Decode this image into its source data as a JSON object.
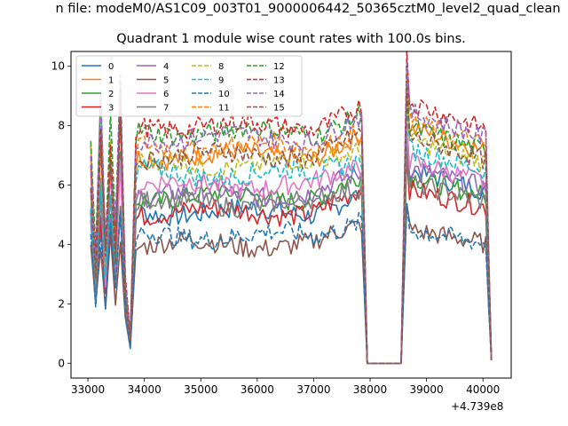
{
  "figure": {
    "suptitle": "n file: modeM0/AS1C09_003T01_9000006442_50365cztM0_level2_quad_clean",
    "title": "Quadrant 1 module wise count rates with 100.0s bins.",
    "x_offset_label": "+4.739e8"
  },
  "chart_data": {
    "type": "line",
    "title": "Quadrant 1 module wise count rates with 100.0s bins.",
    "xlabel": "",
    "ylabel": "",
    "x_offset": 473900000,
    "xlim": [
      32700,
      40500
    ],
    "ylim": [
      -0.5,
      10.5
    ],
    "xticks": [
      33000,
      34000,
      35000,
      36000,
      37000,
      38000,
      39000,
      40000
    ],
    "xtick_labels": [
      "33000",
      "34000",
      "35000",
      "36000",
      "37000",
      "38000",
      "39000",
      "40000"
    ],
    "yticks": [
      0,
      2,
      4,
      6,
      8,
      10
    ],
    "ytick_labels": [
      "0",
      "2",
      "4",
      "6",
      "8",
      "10"
    ],
    "grid": false,
    "legend": {
      "placement": "upper-left",
      "columns": 4
    },
    "segments": [
      {
        "start": 33050,
        "end": 33750
      },
      {
        "start": 33850,
        "end": 37850
      },
      {
        "start": 38650,
        "end": 40150
      }
    ],
    "series": [
      {
        "name": "0",
        "color": "#1f77b4",
        "style": "solid",
        "level": 5.1,
        "after": 6.2
      },
      {
        "name": "1",
        "color": "#ff7f0e",
        "style": "solid",
        "level": 7.0,
        "after": 7.6
      },
      {
        "name": "2",
        "color": "#2ca02c",
        "style": "solid",
        "level": 5.6,
        "after": 6.0
      },
      {
        "name": "3",
        "color": "#d62728",
        "style": "solid",
        "level": 5.1,
        "after": 5.6
      },
      {
        "name": "4",
        "color": "#9467bd",
        "style": "solid",
        "level": 5.7,
        "after": 6.3
      },
      {
        "name": "5",
        "color": "#8c564b",
        "style": "solid",
        "level": 4.0,
        "after": 4.3
      },
      {
        "name": "6",
        "color": "#e377c2",
        "style": "solid",
        "level": 6.0,
        "after": 6.5
      },
      {
        "name": "7",
        "color": "#7f7f7f",
        "style": "solid",
        "level": 5.4,
        "after": 5.8
      },
      {
        "name": "8",
        "color": "#bcbd22",
        "style": "dashed",
        "level": 6.7,
        "after": 7.2
      },
      {
        "name": "9",
        "color": "#17becf",
        "style": "dashed",
        "level": 6.4,
        "after": 6.9
      },
      {
        "name": "10",
        "color": "#1f77b4",
        "style": "dashed",
        "level": 4.3,
        "after": 4.3
      },
      {
        "name": "11",
        "color": "#ff7f0e",
        "style": "dashed",
        "level": 7.3,
        "after": 7.8
      },
      {
        "name": "12",
        "color": "#2ca02c",
        "style": "dashed",
        "level": 7.8,
        "after": 7.6
      },
      {
        "name": "13",
        "color": "#d62728",
        "style": "dashed",
        "level": 8.0,
        "after": 8.4
      },
      {
        "name": "14",
        "color": "#9467bd",
        "style": "dashed",
        "level": 7.6,
        "after": 8.1
      },
      {
        "name": "15",
        "color": "#8c564b",
        "style": "dashed",
        "level": 7.0,
        "after": 7.3
      }
    ]
  }
}
